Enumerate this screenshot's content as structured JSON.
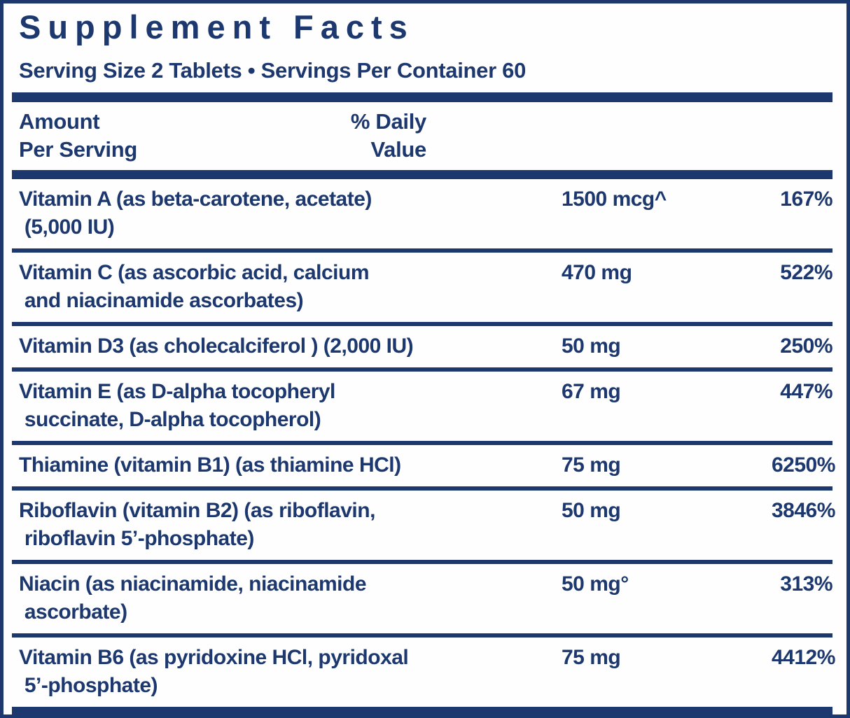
{
  "label": {
    "title": "Supplement Facts",
    "serving_info": "Serving Size 2 Tablets • Servings Per Container 60",
    "columns": {
      "amount_header": "Amount\nPer Serving",
      "daily_value_header": "% Daily\nValue"
    },
    "rows": [
      {
        "name": "Vitamin A (as beta-carotene, acetate)\n (5,000 IU)",
        "amount": "1500 mcg^",
        "daily_value": "167%"
      },
      {
        "name": "Vitamin C (as ascorbic acid, calcium\n and niacinamide ascorbates)",
        "amount": "470 mg",
        "daily_value": "522%"
      },
      {
        "name": "Vitamin D3 (as cholecalciferol ) (2,000 IU)",
        "amount": "50 mg",
        "daily_value": "250%"
      },
      {
        "name": "Vitamin E (as D-alpha tocopheryl\n succinate, D-alpha tocopherol)",
        "amount": "67 mg",
        "daily_value": "447%"
      },
      {
        "name": "Thiamine (vitamin B1) (as thiamine HCl)",
        "amount": "75 mg",
        "daily_value": "6250%"
      },
      {
        "name": "Riboflavin (vitamin B2) (as riboflavin,\n riboflavin 5’-phosphate)",
        "amount": "50 mg",
        "daily_value": "3846%"
      },
      {
        "name": "Niacin (as niacinamide, niacinamide\n ascorbate)",
        "amount": "50 mg°",
        "daily_value": "313%"
      },
      {
        "name": "Vitamin B6 (as pyridoxine HCl, pyridoxal\n 5’-phosphate)",
        "amount": "75 mg",
        "daily_value": "4412%"
      }
    ],
    "colors": {
      "navy": "#1c386e",
      "background": "#fefefe"
    }
  }
}
